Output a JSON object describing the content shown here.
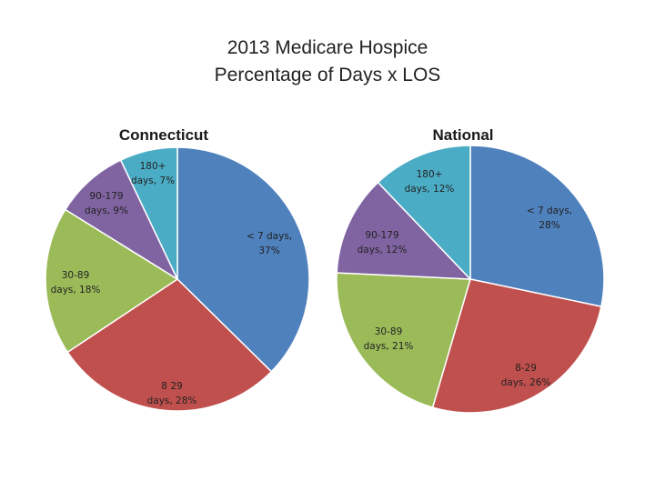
{
  "header": {
    "title_line1": "2013 Medicare Hospice",
    "title_line2": "Percentage of Days x LOS"
  },
  "chart_data": [
    {
      "type": "pie",
      "title": "Connecticut",
      "categories": [
        "< 7 days",
        "8 29 days",
        "30-89 days",
        "90-179 days",
        "180+ days"
      ],
      "values": [
        37,
        28,
        18,
        9,
        7
      ],
      "labels": [
        {
          "line1": "< 7 days,",
          "line2": "37%"
        },
        {
          "line1": "8 29",
          "line2": "days, 28%"
        },
        {
          "line1": "30-89",
          "line2": "days, 18%"
        },
        {
          "line1": "90-179",
          "line2": "days, 9%"
        },
        {
          "line1": "180+",
          "line2": "days, 7%"
        }
      ],
      "colors": [
        "#4f81bd",
        "#c0504d",
        "#9bbb59",
        "#8064a2",
        "#4bacc6"
      ]
    },
    {
      "type": "pie",
      "title": "National",
      "categories": [
        "< 7 days",
        "8-29 days",
        "30-89 days",
        "90-179 days",
        "180+ days"
      ],
      "values": [
        28,
        26,
        21,
        12,
        12
      ],
      "labels": [
        {
          "line1": "< 7 days,",
          "line2": "28%"
        },
        {
          "line1": "8-29",
          "line2": "days, 26%"
        },
        {
          "line1": "30-89",
          "line2": "days, 21%"
        },
        {
          "line1": "90-179",
          "line2": "days, 12%"
        },
        {
          "line1": "180+",
          "line2": "days, 12%"
        }
      ],
      "colors": [
        "#4f81bd",
        "#c0504d",
        "#9bbb59",
        "#8064a2",
        "#4bacc6"
      ]
    }
  ]
}
